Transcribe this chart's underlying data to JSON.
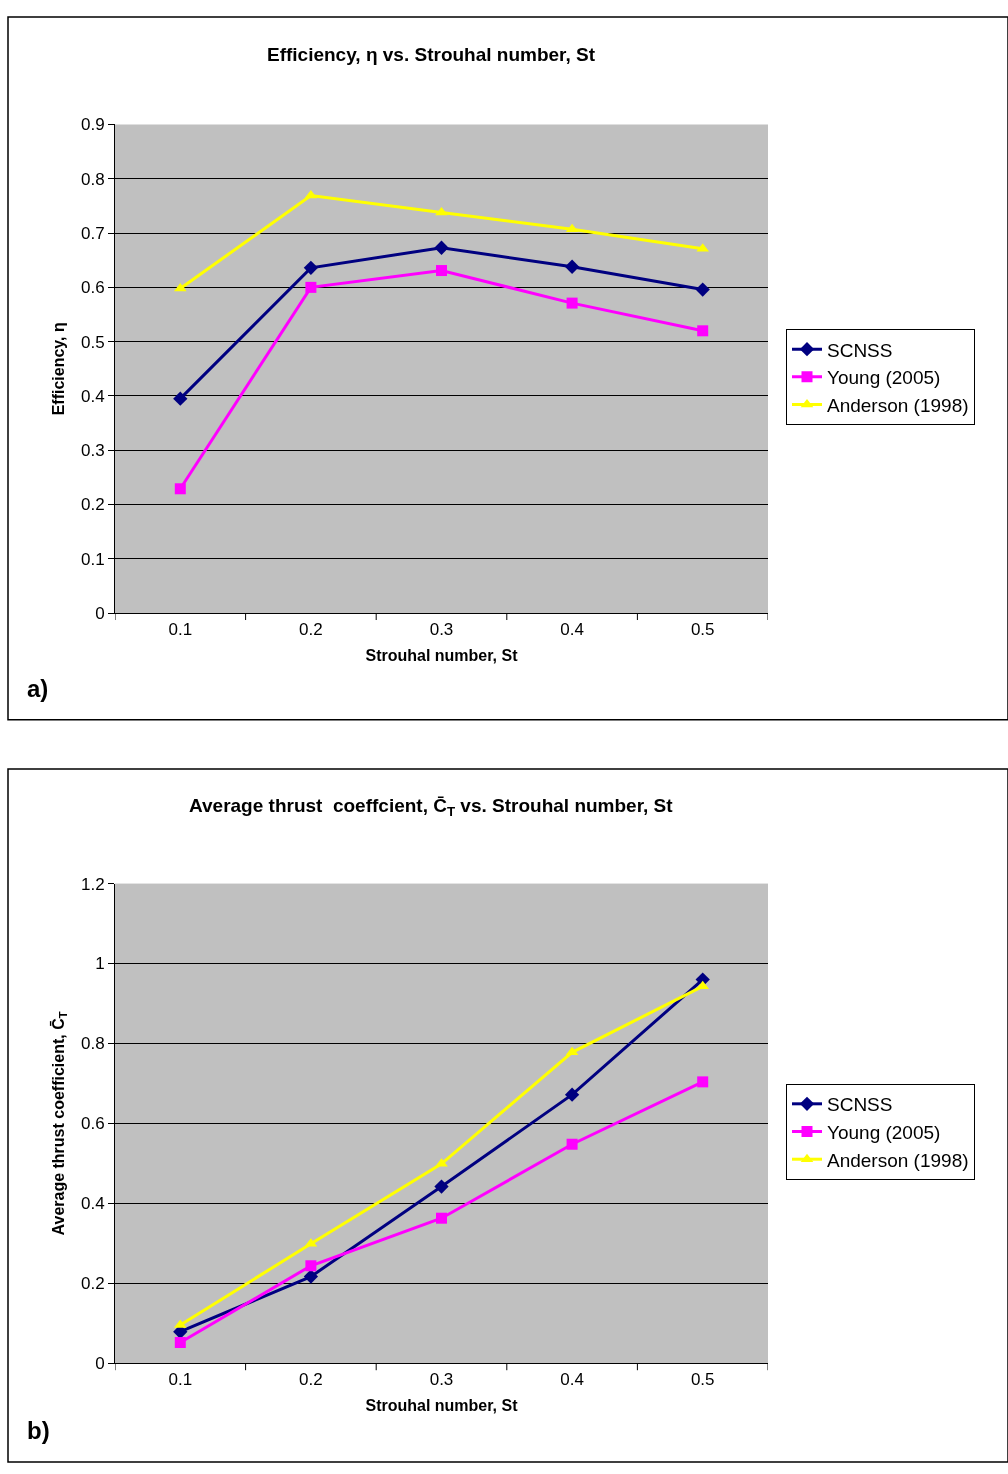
{
  "chart_data": [
    {
      "type": "line",
      "title": "Efficiency, η vs. Strouhal number, St",
      "xlabel": "Strouhal number, St",
      "ylabel": "Efficiency, η",
      "categories": [
        "0.1",
        "0.2",
        "0.3",
        "0.4",
        "0.5"
      ],
      "series": [
        {
          "name": "SCNSS",
          "color": "#000080",
          "marker": "diamond",
          "values": [
            0.395,
            0.636,
            0.673,
            0.638,
            0.596
          ]
        },
        {
          "name": "Young (2005)",
          "color": "#ff00ff",
          "marker": "square",
          "values": [
            0.229,
            0.6,
            0.631,
            0.571,
            0.52
          ]
        },
        {
          "name": "Anderson (1998)",
          "color": "#ffff00",
          "marker": "triangle",
          "values": [
            0.598,
            0.769,
            0.738,
            0.707,
            0.671
          ]
        }
      ],
      "ylim": [
        0,
        0.9
      ],
      "yticks": [
        0,
        0.1,
        0.2,
        0.3,
        0.4,
        0.5,
        0.6,
        0.7,
        0.8,
        0.9
      ],
      "grid": "y",
      "legend": "right",
      "annotations": [
        "a)"
      ]
    },
    {
      "type": "line",
      "title": "Average thrust  coeffcient, C̄$_{T}$ vs. Strouhal number, St",
      "xlabel": "Strouhal number, St",
      "ylabel": "Average thrust coefficient, C̄$_{T}$",
      "categories": [
        "0.1",
        "0.2",
        "0.3",
        "0.4",
        "0.5"
      ],
      "series": [
        {
          "name": "SCNSS",
          "color": "#000080",
          "marker": "diamond",
          "values": [
            0.079,
            0.217,
            0.442,
            0.672,
            0.96
          ]
        },
        {
          "name": "Young (2005)",
          "color": "#ff00ff",
          "marker": "square",
          "values": [
            0.052,
            0.244,
            0.363,
            0.548,
            0.704
          ]
        },
        {
          "name": "Anderson (1998)",
          "color": "#ffff00",
          "marker": "triangle",
          "values": [
            0.096,
            0.299,
            0.499,
            0.778,
            0.943
          ]
        }
      ],
      "ylim": [
        0,
        1.2
      ],
      "yticks": [
        0,
        0.2,
        0.4,
        0.6,
        0.8,
        1,
        1.2
      ],
      "grid": "y",
      "legend": "right",
      "annotations": [
        "b)"
      ]
    }
  ]
}
